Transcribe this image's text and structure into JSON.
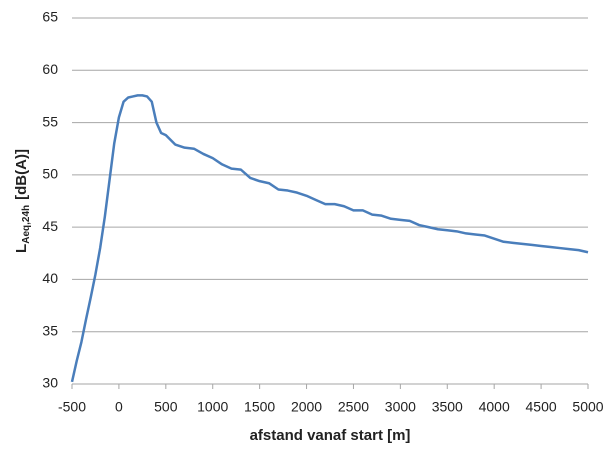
{
  "chart_data": {
    "type": "line",
    "xlabel": "afstand vanaf start [m]",
    "ylabel": "L",
    "ylabel_subscript": "Aeq,24h",
    "ylabel_unit": "[dB(A)]",
    "x": [
      -500,
      -450,
      -400,
      -350,
      -300,
      -250,
      -200,
      -150,
      -100,
      -50,
      0,
      50,
      100,
      150,
      200,
      250,
      300,
      350,
      400,
      450,
      500,
      600,
      700,
      800,
      900,
      1000,
      1100,
      1200,
      1300,
      1400,
      1500,
      1600,
      1700,
      1800,
      1900,
      2000,
      2100,
      2200,
      2300,
      2400,
      2500,
      2600,
      2700,
      2800,
      2900,
      3000,
      3100,
      3200,
      3300,
      3400,
      3500,
      3600,
      3700,
      3800,
      3900,
      4000,
      4100,
      4200,
      4300,
      4400,
      4500,
      4600,
      4700,
      4800,
      4900,
      5000
    ],
    "series": [
      {
        "color": "#4a7ebb",
        "values": [
          30.2,
          32.2,
          34,
          36.2,
          38.3,
          40.5,
          43,
          46,
          49.5,
          53,
          55.5,
          57,
          57.4,
          57.5,
          57.6,
          57.6,
          57.5,
          57,
          55,
          54,
          53.8,
          52.9,
          52.6,
          52.5,
          52,
          51.6,
          51,
          50.6,
          50.5,
          49.7,
          49.4,
          49.2,
          48.6,
          48.5,
          48.3,
          48,
          47.6,
          47.2,
          47.2,
          47,
          46.6,
          46.6,
          46.2,
          46.1,
          45.8,
          45.7,
          45.6,
          45.2,
          45,
          44.8,
          44.7,
          44.6,
          44.4,
          44.3,
          44.2,
          43.9,
          43.6,
          43.5,
          43.4,
          43.3,
          43.2,
          43.1,
          43,
          42.9,
          42.8,
          42.6
        ]
      }
    ],
    "xlim": [
      -500,
      5000
    ],
    "xticks": [
      -500,
      0,
      500,
      1000,
      1500,
      2000,
      2500,
      3000,
      3500,
      4000,
      4500,
      5000
    ],
    "ylim": [
      30,
      65
    ],
    "yticks": [
      30,
      35,
      40,
      45,
      50,
      55,
      60,
      65
    ],
    "grid": true
  }
}
